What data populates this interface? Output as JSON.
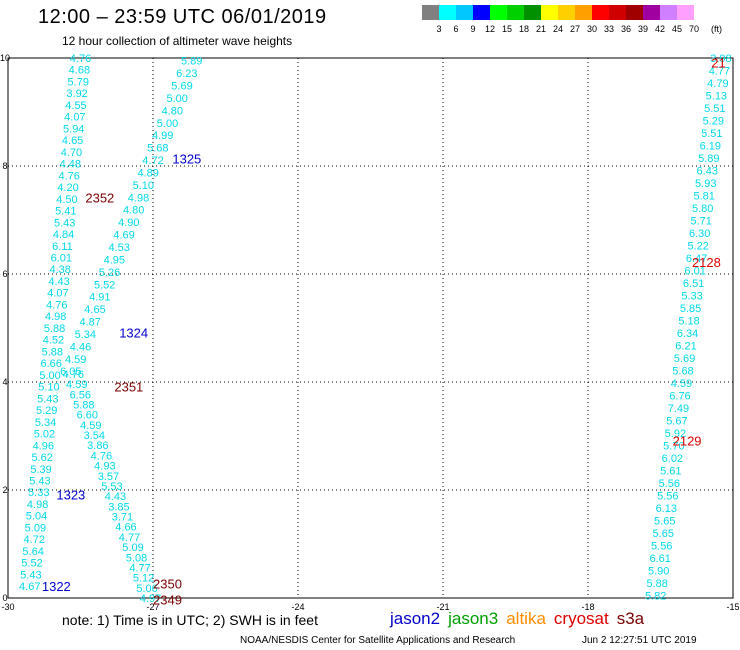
{
  "header": {
    "title": "12:00 – 23:59 UTC 06/01/2019",
    "subtitle": "12 hour collection of altimeter wave heights"
  },
  "colorbar": {
    "unit": "(ft)",
    "bins": [
      {
        "color": "#808080",
        "label": "3"
      },
      {
        "color": "#00ffff",
        "label": "6"
      },
      {
        "color": "#00c8ff",
        "label": "9"
      },
      {
        "color": "#0000ff",
        "label": "12"
      },
      {
        "color": "#00ff00",
        "label": "15"
      },
      {
        "color": "#00d000",
        "label": "18"
      },
      {
        "color": "#009000",
        "label": "21"
      },
      {
        "color": "#ffff00",
        "label": "24"
      },
      {
        "color": "#ffd000",
        "label": "27"
      },
      {
        "color": "#ffa000",
        "label": "30"
      },
      {
        "color": "#ff0000",
        "label": "33"
      },
      {
        "color": "#d00000",
        "label": "36"
      },
      {
        "color": "#a00000",
        "label": "39"
      },
      {
        "color": "#a000a0",
        "label": "42"
      },
      {
        "color": "#d080ff",
        "label": "45"
      },
      {
        "color": "#ffa0ff",
        "label": "70"
      }
    ]
  },
  "axes": {
    "x_ticks": [
      "-30",
      "-27",
      "-24",
      "-21",
      "-18",
      "-15"
    ],
    "y_ticks": [
      "0",
      "2",
      "4",
      "6",
      "8",
      "10"
    ],
    "xlim": [
      -30,
      -15
    ],
    "ylim": [
      0,
      10
    ]
  },
  "colors": {
    "value": "#00d8e8",
    "jason2": "#0000cc",
    "jason3": "#00a000",
    "altika": "#ff8c00",
    "cryosat": "#dd0000",
    "s3a": "#7a0000"
  },
  "tracks": [
    {
      "x0": -29.55,
      "y0": 0.22,
      "x1": -28.5,
      "y1": 10.0,
      "values": [
        "4.67",
        "5.43",
        "5.52",
        "5.64",
        "4.72",
        "5.09",
        "5.04",
        "4.98",
        "5.33",
        "5.43",
        "5.39",
        "5.62",
        "4.96",
        "5.02",
        "5.34",
        "5.29",
        "5.43",
        "5.10",
        "5.00",
        "6.66",
        "5.88",
        "4.52",
        "5.88",
        "4.98",
        "4.76",
        "4.07",
        "4.43",
        "4.38",
        "6.01",
        "6.11",
        "4.84",
        "5.43",
        "5.41",
        "4.50",
        "4.20",
        "4.76",
        "4.48",
        "4.70",
        "4.65",
        "5.94",
        "4.07",
        "4.55",
        "3.92",
        "5.79",
        "4.68",
        "4.76"
      ]
    },
    {
      "x0": -27.05,
      "y0": 0.0,
      "x1": -28.65,
      "y1": 4.15,
      "values": [
        "4.97",
        "5.06",
        "5.12",
        "4.77",
        "5.08",
        "5.09",
        "4.77",
        "4.66",
        "3.71",
        "3.85",
        "4.43",
        "5.53",
        "3.57",
        "4.93",
        "4.76",
        "3.86",
        "3.54",
        "4.59",
        "6.60",
        "5.88",
        "6.56",
        "4.59",
        "4.76"
      ]
    },
    {
      "x0": -28.7,
      "y0": 4.2,
      "x1": -26.2,
      "y1": 9.95,
      "values": [
        "6.05",
        "4.59",
        "4.46",
        "5.34",
        "4.87",
        "4.65",
        "4.91",
        "5.52",
        "5.26",
        "4.95",
        "4.53",
        "4.69",
        "4.90",
        "4.80",
        "4.98",
        "5.10",
        "4.89",
        "4.72",
        "5.68",
        "4.99",
        "5.00",
        "4.80",
        "5.00",
        "5.69",
        "6.23",
        "5.89"
      ]
    },
    {
      "x0": -16.6,
      "y0": 0.05,
      "x1": -15.25,
      "y1": 10.0,
      "values": [
        "5.82",
        "5.88",
        "5.90",
        "6.61",
        "5.56",
        "5.65",
        "5.65",
        "6.13",
        "5.56",
        "5.56",
        "5.61",
        "6.02",
        "5.70",
        "5.92",
        "5.67",
        "7.49",
        "6.76",
        "4.59",
        "5.68",
        "5.69",
        "6.21",
        "6.34",
        "5.18",
        "5.85",
        "5.33",
        "6.51",
        "6.01",
        "6.47",
        "5.22",
        "6.30",
        "5.71",
        "5.80",
        "5.81",
        "5.93",
        "6.43",
        "5.89",
        "6.19",
        "5.51",
        "5.29",
        "5.51",
        "5.13",
        "4.79",
        "4.77",
        "3.98"
      ]
    }
  ],
  "track_ids": [
    {
      "id": "1322",
      "x": -29.0,
      "y": 0.2,
      "sat": "jason2"
    },
    {
      "id": "1323",
      "x": -28.7,
      "y": 1.9,
      "sat": "jason2"
    },
    {
      "id": "1324",
      "x": -27.4,
      "y": 4.9,
      "sat": "jason2"
    },
    {
      "id": "1325",
      "x": -26.3,
      "y": 8.12,
      "sat": "jason2"
    },
    {
      "id": "2349",
      "x": -26.7,
      "y": -0.05,
      "sat": "s3a"
    },
    {
      "id": "2350",
      "x": -26.7,
      "y": 0.25,
      "sat": "s3a"
    },
    {
      "id": "2351",
      "x": -27.5,
      "y": 3.9,
      "sat": "s3a"
    },
    {
      "id": "2352",
      "x": -28.1,
      "y": 7.4,
      "sat": "s3a"
    },
    {
      "id": "2128",
      "x": -15.55,
      "y": 6.2,
      "sat": "cryosat"
    },
    {
      "id": "2129",
      "x": -15.95,
      "y": 2.9,
      "sat": "cryosat"
    },
    {
      "id": "21",
      "x": -15.3,
      "y": 9.9,
      "sat": "cryosat"
    }
  ],
  "note": "note:  1) Time is in UTC;  2) SWH is in feet",
  "legend": [
    {
      "label": "jason2",
      "color": "#0000cc"
    },
    {
      "label": "jason3",
      "color": "#00a000"
    },
    {
      "label": "altika",
      "color": "#ff8c00"
    },
    {
      "label": "cryosat",
      "color": "#dd0000"
    },
    {
      "label": "s3a",
      "color": "#7a0000"
    }
  ],
  "credit": {
    "org": "NOAA/NESDIS Center for Satellite Applications and Research",
    "timestamp": "Jun  2 12:27:51 UTC 2019"
  }
}
